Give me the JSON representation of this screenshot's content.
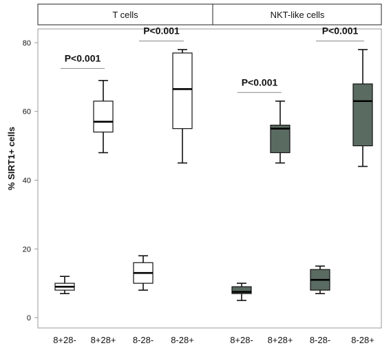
{
  "chart_data": {
    "type": "boxplot",
    "ylabel": "% SIRT1+ cells",
    "ylim": [
      -3,
      84
    ],
    "yticks": [
      0,
      20,
      40,
      60,
      80
    ],
    "grid": false,
    "panels": [
      "T cells",
      "NKT-like cells"
    ],
    "categories": [
      "8+28-",
      "8+28+",
      "8-28-",
      "8-28+",
      "8+28-",
      "8+28+",
      "8-28-",
      "8-28+"
    ],
    "series": [
      {
        "panel": "T cells",
        "fill": "#ffffff",
        "boxes": [
          {
            "category": "8+28-",
            "min": 7,
            "q1": 8,
            "median": 9,
            "q3": 10,
            "max": 12
          },
          {
            "category": "8+28+",
            "min": 48,
            "q1": 54,
            "median": 57,
            "q3": 63,
            "max": 69
          },
          {
            "category": "8-28-",
            "min": 8,
            "q1": 10,
            "median": 13,
            "q3": 16,
            "max": 18
          },
          {
            "category": "8-28+",
            "min": 45,
            "q1": 55,
            "median": 66.5,
            "q3": 77,
            "max": 78
          }
        ]
      },
      {
        "panel": "NKT-like cells",
        "fill": "#5a6b62",
        "boxes": [
          {
            "category": "8+28-",
            "min": 5,
            "q1": 7,
            "median": 7.5,
            "q3": 9,
            "max": 10
          },
          {
            "category": "8+28+",
            "min": 45,
            "q1": 48,
            "median": 55,
            "q3": 56,
            "max": 63
          },
          {
            "category": "8-28-",
            "min": 7,
            "q1": 8,
            "median": 11,
            "q3": 14,
            "max": 15
          },
          {
            "category": "8-28+",
            "min": 44,
            "q1": 50,
            "median": 63,
            "q3": 68,
            "max": 78
          }
        ]
      }
    ],
    "annotations": [
      {
        "text": "P<0.001",
        "from": 0,
        "to": 1,
        "y": 72.5
      },
      {
        "text": "P<0.001",
        "from": 2,
        "to": 3,
        "y": 80.5
      },
      {
        "text": "P<0.001",
        "from": 4,
        "to": 5,
        "y": 65.5
      },
      {
        "text": "P<0.001",
        "from": 6,
        "to": 7,
        "y": 80.5
      }
    ]
  },
  "colors": {
    "t_cells_box": "#ffffff",
    "nkt_box": "#5a6b62",
    "axis": "#9a9a9a",
    "annotation_line": "#888888"
  }
}
